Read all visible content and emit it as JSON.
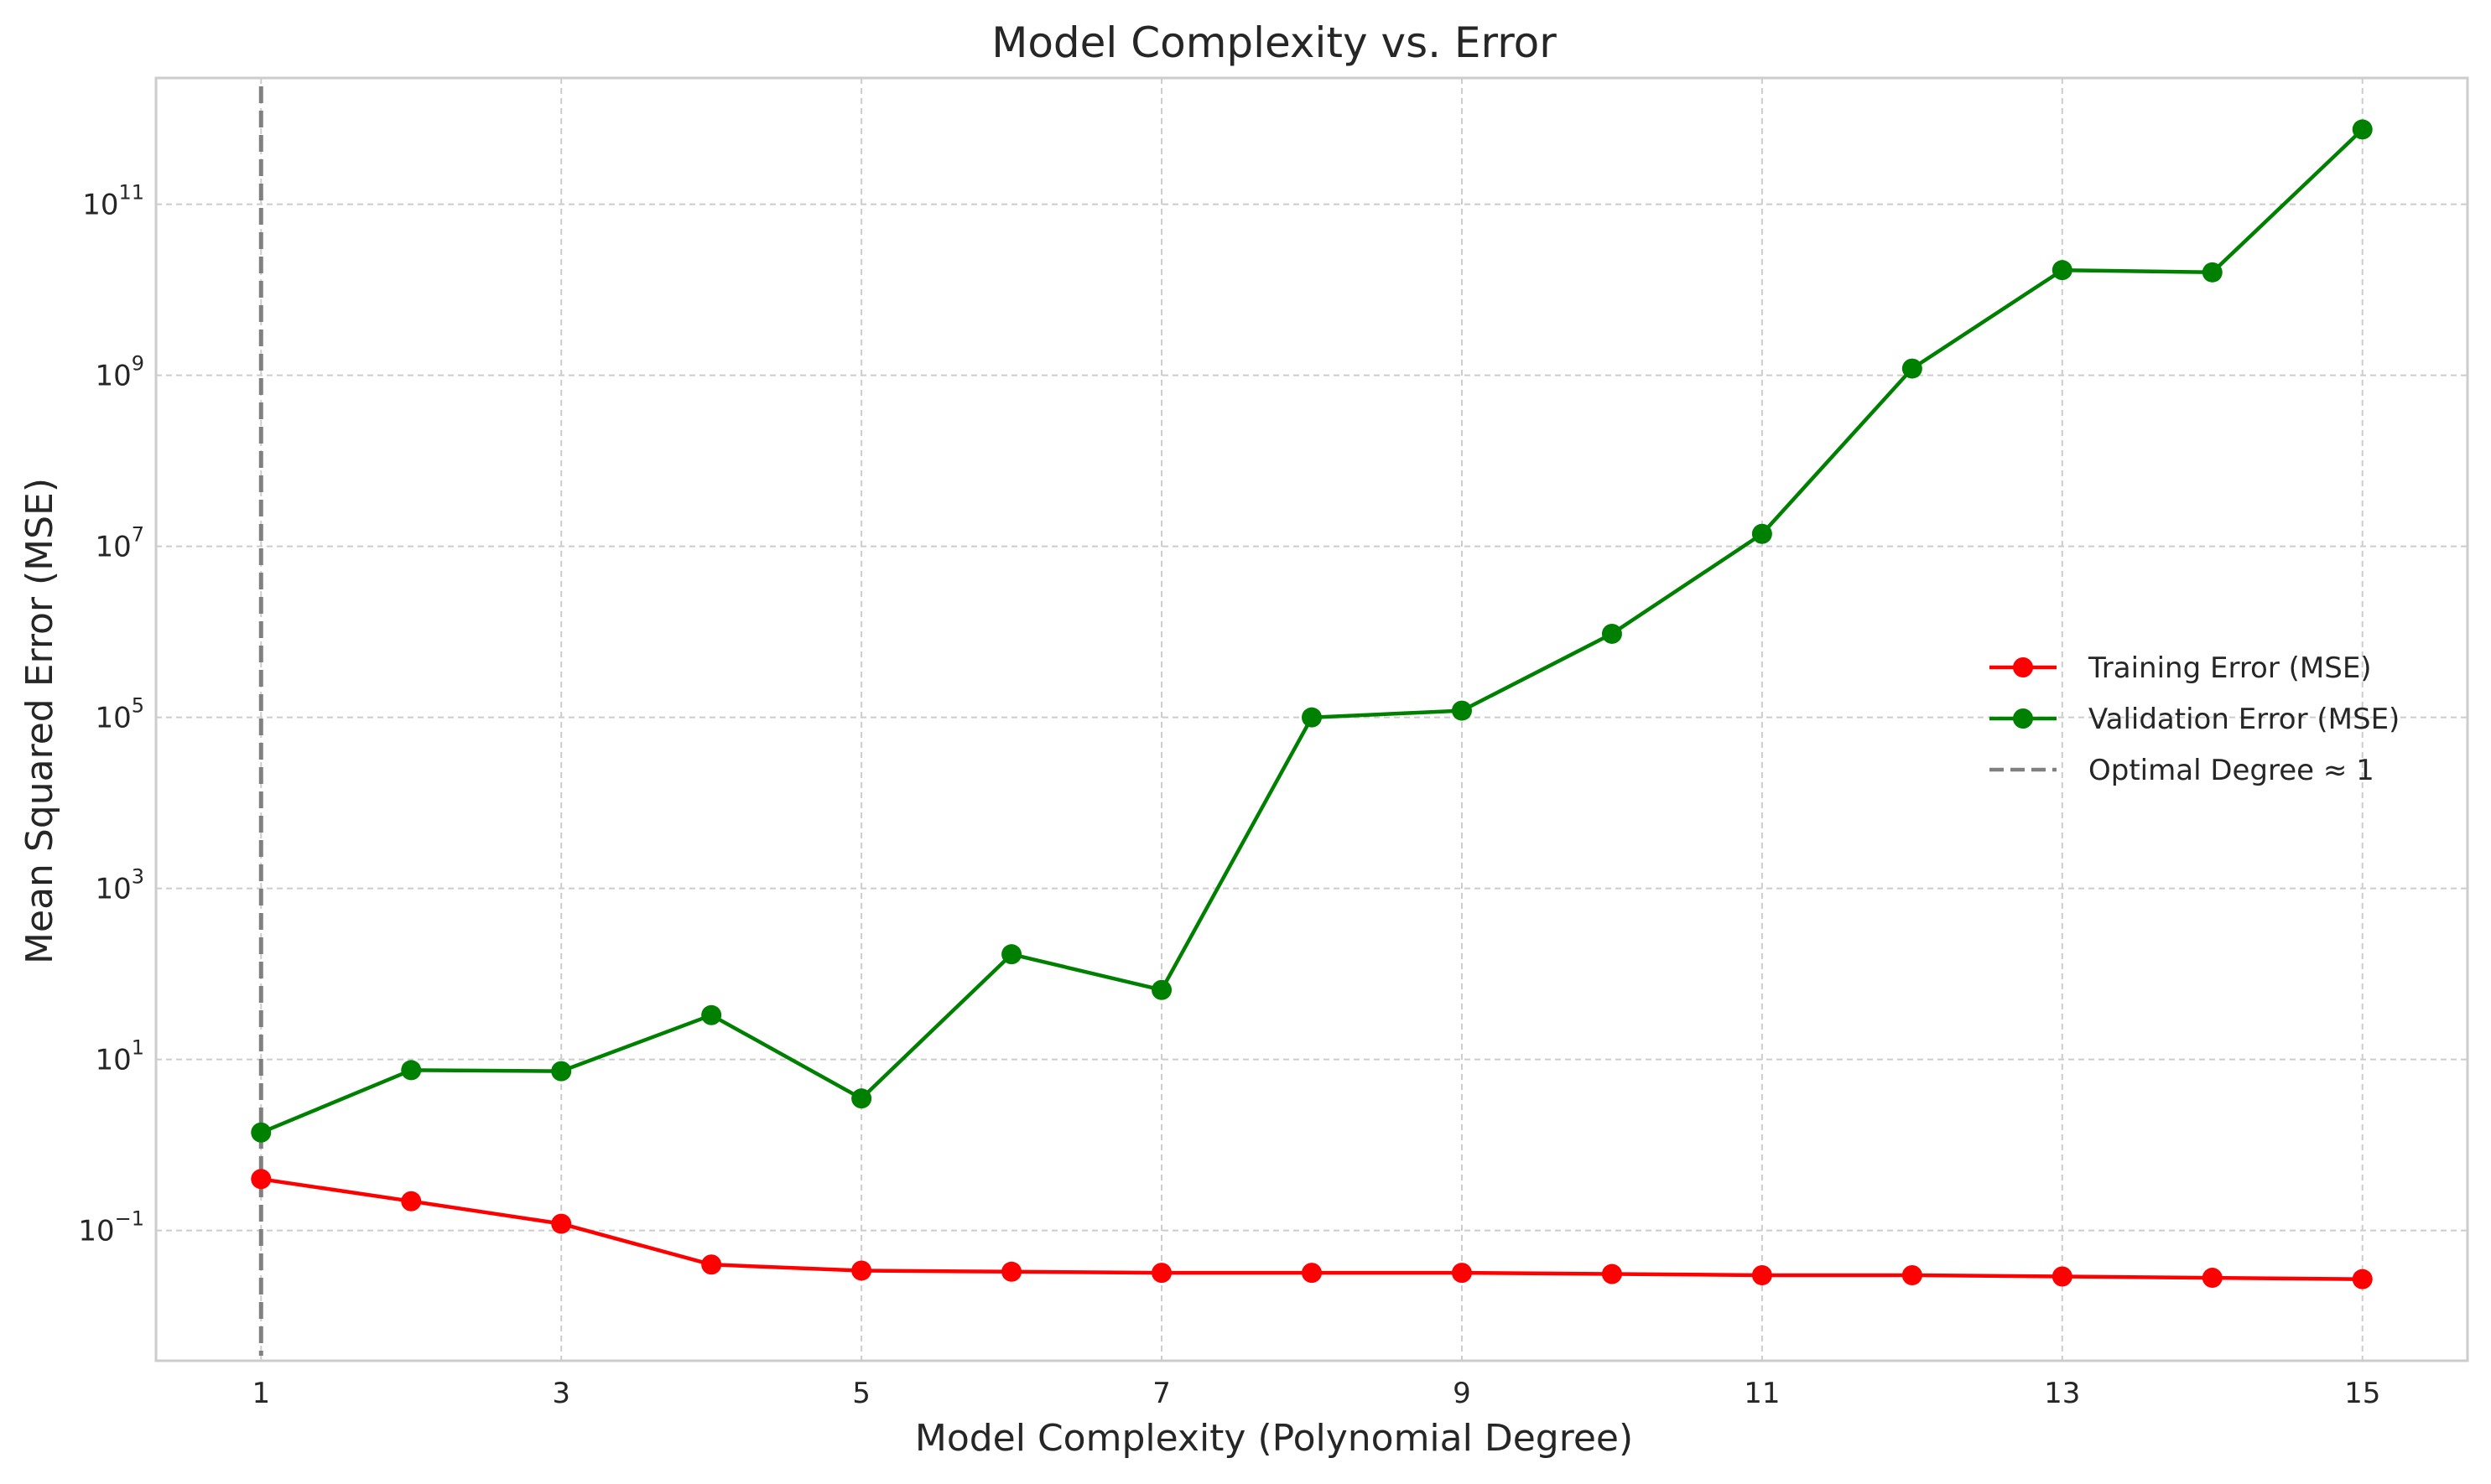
{
  "chart_data": {
    "type": "line",
    "title": "Model Complexity vs. Error",
    "xlabel": "Model Complexity (Polynomial Degree)",
    "ylabel": "Mean Squared Error (MSE)",
    "x": [
      1,
      2,
      3,
      4,
      5,
      6,
      7,
      8,
      9,
      10,
      11,
      12,
      13,
      14,
      15
    ],
    "x_ticks": [
      1,
      3,
      5,
      7,
      9,
      11,
      13,
      15
    ],
    "x_tick_labels": [
      "1",
      "3",
      "5",
      "7",
      "9",
      "11",
      "13",
      "15"
    ],
    "xlim": [
      0.3,
      15.7
    ],
    "y_scale": "log",
    "ylim": [
      0.003,
      3000000000000
    ],
    "y_ticks": [
      0.1,
      10,
      1000,
      100000,
      10000000,
      1000000000,
      100000000000
    ],
    "y_tick_labels": [
      {
        "base": "10",
        "exp": "−1"
      },
      {
        "base": "10",
        "exp": "1"
      },
      {
        "base": "10",
        "exp": "3"
      },
      {
        "base": "10",
        "exp": "5"
      },
      {
        "base": "10",
        "exp": "7"
      },
      {
        "base": "10",
        "exp": "9"
      },
      {
        "base": "10",
        "exp": "11"
      }
    ],
    "grid": true,
    "legend_position": "right",
    "series": [
      {
        "name": "Training Error (MSE)",
        "color": "#ff0000",
        "marker": "circle",
        "values": [
          0.4,
          0.22,
          0.12,
          0.04,
          0.034,
          0.033,
          0.032,
          0.032,
          0.032,
          0.031,
          0.03,
          0.03,
          0.029,
          0.028,
          0.027
        ]
      },
      {
        "name": "Validation Error (MSE)",
        "color": "#008000",
        "marker": "circle",
        "values": [
          1.4,
          7.5,
          7.3,
          33,
          3.5,
          170,
          65,
          100000,
          120000,
          950000,
          14000000,
          1200000000,
          17000000000,
          16000000000,
          750000000000
        ]
      }
    ],
    "reference_lines": [
      {
        "name": "Optimal Degree ≈ 1",
        "orientation": "vertical",
        "x": 1,
        "color": "#808080",
        "style": "dashed"
      }
    ]
  }
}
